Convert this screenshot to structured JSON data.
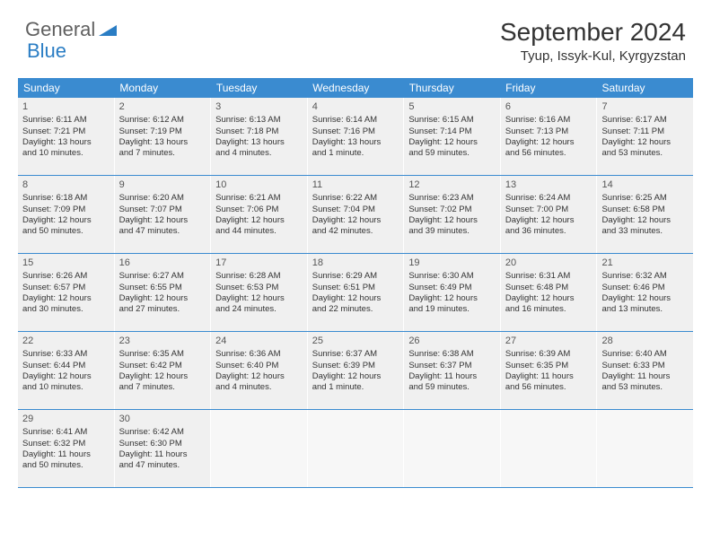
{
  "logo": {
    "part1": "General",
    "part2": "Blue"
  },
  "title": "September 2024",
  "location": "Tyup, Issyk-Kul, Kyrgyzstan",
  "colors": {
    "header_bg": "#3a8bd0",
    "header_text": "#ffffff",
    "cell_bg": "#f0f0f0",
    "border": "#3a8bd0",
    "logo_gray": "#606060",
    "logo_blue": "#2a7dc4",
    "text": "#333333"
  },
  "typography": {
    "title_fontsize": 28,
    "location_fontsize": 15,
    "weekday_fontsize": 12,
    "daynum_fontsize": 11,
    "body_fontsize": 9.5
  },
  "weekdays": [
    "Sunday",
    "Monday",
    "Tuesday",
    "Wednesday",
    "Thursday",
    "Friday",
    "Saturday"
  ],
  "days": [
    {
      "n": "1",
      "sunrise": "Sunrise: 6:11 AM",
      "sunset": "Sunset: 7:21 PM",
      "daylight1": "Daylight: 13 hours",
      "daylight2": "and 10 minutes."
    },
    {
      "n": "2",
      "sunrise": "Sunrise: 6:12 AM",
      "sunset": "Sunset: 7:19 PM",
      "daylight1": "Daylight: 13 hours",
      "daylight2": "and 7 minutes."
    },
    {
      "n": "3",
      "sunrise": "Sunrise: 6:13 AM",
      "sunset": "Sunset: 7:18 PM",
      "daylight1": "Daylight: 13 hours",
      "daylight2": "and 4 minutes."
    },
    {
      "n": "4",
      "sunrise": "Sunrise: 6:14 AM",
      "sunset": "Sunset: 7:16 PM",
      "daylight1": "Daylight: 13 hours",
      "daylight2": "and 1 minute."
    },
    {
      "n": "5",
      "sunrise": "Sunrise: 6:15 AM",
      "sunset": "Sunset: 7:14 PM",
      "daylight1": "Daylight: 12 hours",
      "daylight2": "and 59 minutes."
    },
    {
      "n": "6",
      "sunrise": "Sunrise: 6:16 AM",
      "sunset": "Sunset: 7:13 PM",
      "daylight1": "Daylight: 12 hours",
      "daylight2": "and 56 minutes."
    },
    {
      "n": "7",
      "sunrise": "Sunrise: 6:17 AM",
      "sunset": "Sunset: 7:11 PM",
      "daylight1": "Daylight: 12 hours",
      "daylight2": "and 53 minutes."
    },
    {
      "n": "8",
      "sunrise": "Sunrise: 6:18 AM",
      "sunset": "Sunset: 7:09 PM",
      "daylight1": "Daylight: 12 hours",
      "daylight2": "and 50 minutes."
    },
    {
      "n": "9",
      "sunrise": "Sunrise: 6:20 AM",
      "sunset": "Sunset: 7:07 PM",
      "daylight1": "Daylight: 12 hours",
      "daylight2": "and 47 minutes."
    },
    {
      "n": "10",
      "sunrise": "Sunrise: 6:21 AM",
      "sunset": "Sunset: 7:06 PM",
      "daylight1": "Daylight: 12 hours",
      "daylight2": "and 44 minutes."
    },
    {
      "n": "11",
      "sunrise": "Sunrise: 6:22 AM",
      "sunset": "Sunset: 7:04 PM",
      "daylight1": "Daylight: 12 hours",
      "daylight2": "and 42 minutes."
    },
    {
      "n": "12",
      "sunrise": "Sunrise: 6:23 AM",
      "sunset": "Sunset: 7:02 PM",
      "daylight1": "Daylight: 12 hours",
      "daylight2": "and 39 minutes."
    },
    {
      "n": "13",
      "sunrise": "Sunrise: 6:24 AM",
      "sunset": "Sunset: 7:00 PM",
      "daylight1": "Daylight: 12 hours",
      "daylight2": "and 36 minutes."
    },
    {
      "n": "14",
      "sunrise": "Sunrise: 6:25 AM",
      "sunset": "Sunset: 6:58 PM",
      "daylight1": "Daylight: 12 hours",
      "daylight2": "and 33 minutes."
    },
    {
      "n": "15",
      "sunrise": "Sunrise: 6:26 AM",
      "sunset": "Sunset: 6:57 PM",
      "daylight1": "Daylight: 12 hours",
      "daylight2": "and 30 minutes."
    },
    {
      "n": "16",
      "sunrise": "Sunrise: 6:27 AM",
      "sunset": "Sunset: 6:55 PM",
      "daylight1": "Daylight: 12 hours",
      "daylight2": "and 27 minutes."
    },
    {
      "n": "17",
      "sunrise": "Sunrise: 6:28 AM",
      "sunset": "Sunset: 6:53 PM",
      "daylight1": "Daylight: 12 hours",
      "daylight2": "and 24 minutes."
    },
    {
      "n": "18",
      "sunrise": "Sunrise: 6:29 AM",
      "sunset": "Sunset: 6:51 PM",
      "daylight1": "Daylight: 12 hours",
      "daylight2": "and 22 minutes."
    },
    {
      "n": "19",
      "sunrise": "Sunrise: 6:30 AM",
      "sunset": "Sunset: 6:49 PM",
      "daylight1": "Daylight: 12 hours",
      "daylight2": "and 19 minutes."
    },
    {
      "n": "20",
      "sunrise": "Sunrise: 6:31 AM",
      "sunset": "Sunset: 6:48 PM",
      "daylight1": "Daylight: 12 hours",
      "daylight2": "and 16 minutes."
    },
    {
      "n": "21",
      "sunrise": "Sunrise: 6:32 AM",
      "sunset": "Sunset: 6:46 PM",
      "daylight1": "Daylight: 12 hours",
      "daylight2": "and 13 minutes."
    },
    {
      "n": "22",
      "sunrise": "Sunrise: 6:33 AM",
      "sunset": "Sunset: 6:44 PM",
      "daylight1": "Daylight: 12 hours",
      "daylight2": "and 10 minutes."
    },
    {
      "n": "23",
      "sunrise": "Sunrise: 6:35 AM",
      "sunset": "Sunset: 6:42 PM",
      "daylight1": "Daylight: 12 hours",
      "daylight2": "and 7 minutes."
    },
    {
      "n": "24",
      "sunrise": "Sunrise: 6:36 AM",
      "sunset": "Sunset: 6:40 PM",
      "daylight1": "Daylight: 12 hours",
      "daylight2": "and 4 minutes."
    },
    {
      "n": "25",
      "sunrise": "Sunrise: 6:37 AM",
      "sunset": "Sunset: 6:39 PM",
      "daylight1": "Daylight: 12 hours",
      "daylight2": "and 1 minute."
    },
    {
      "n": "26",
      "sunrise": "Sunrise: 6:38 AM",
      "sunset": "Sunset: 6:37 PM",
      "daylight1": "Daylight: 11 hours",
      "daylight2": "and 59 minutes."
    },
    {
      "n": "27",
      "sunrise": "Sunrise: 6:39 AM",
      "sunset": "Sunset: 6:35 PM",
      "daylight1": "Daylight: 11 hours",
      "daylight2": "and 56 minutes."
    },
    {
      "n": "28",
      "sunrise": "Sunrise: 6:40 AM",
      "sunset": "Sunset: 6:33 PM",
      "daylight1": "Daylight: 11 hours",
      "daylight2": "and 53 minutes."
    },
    {
      "n": "29",
      "sunrise": "Sunrise: 6:41 AM",
      "sunset": "Sunset: 6:32 PM",
      "daylight1": "Daylight: 11 hours",
      "daylight2": "and 50 minutes."
    },
    {
      "n": "30",
      "sunrise": "Sunrise: 6:42 AM",
      "sunset": "Sunset: 6:30 PM",
      "daylight1": "Daylight: 11 hours",
      "daylight2": "and 47 minutes."
    }
  ],
  "layout": {
    "first_weekday_offset": 0,
    "weeks": 5,
    "columns": 7,
    "trailing_empty": 5
  }
}
